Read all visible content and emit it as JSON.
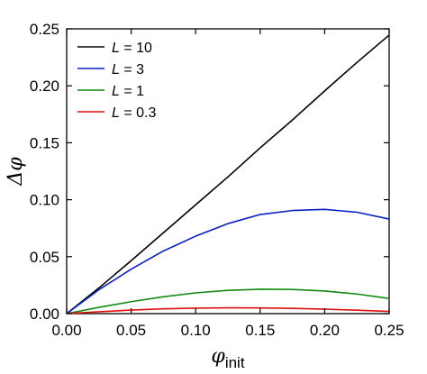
{
  "chart_data": {
    "type": "line",
    "xlabel": {
      "symbol": "φ",
      "subscript": "init"
    },
    "ylabel": "Δφ",
    "xlim": [
      0,
      0.25
    ],
    "ylim": [
      0,
      0.25
    ],
    "x_ticks": [
      "0.00",
      "0.05",
      "0.10",
      "0.15",
      "0.20",
      "0.25"
    ],
    "y_ticks": [
      "0.00",
      "0.05",
      "0.10",
      "0.15",
      "0.20",
      "0.25"
    ],
    "x_tick_values": [
      0,
      0.05,
      0.1,
      0.15,
      0.2,
      0.25
    ],
    "y_tick_values": [
      0,
      0.05,
      0.1,
      0.15,
      0.2,
      0.25
    ],
    "grid": false,
    "legend_position": "top-left",
    "series": [
      {
        "name": "L = 10",
        "legend_var": "L",
        "legend_value": "= 10",
        "color": "#000000",
        "x": [
          0,
          0.025,
          0.05,
          0.075,
          0.1,
          0.125,
          0.15,
          0.175,
          0.2,
          0.225,
          0.25
        ],
        "y": [
          0,
          0.0225,
          0.0465,
          0.071,
          0.0955,
          0.12,
          0.1455,
          0.17,
          0.1955,
          0.2205,
          0.2445
        ]
      },
      {
        "name": "L = 3",
        "legend_var": "L",
        "legend_value": "= 3",
        "color": "#0a1ec8",
        "x": [
          0,
          0.025,
          0.05,
          0.075,
          0.1,
          0.125,
          0.15,
          0.175,
          0.2,
          0.225,
          0.25
        ],
        "y": [
          0,
          0.021,
          0.039,
          0.055,
          0.068,
          0.079,
          0.087,
          0.0905,
          0.0915,
          0.089,
          0.083
        ]
      },
      {
        "name": "L = 1",
        "legend_var": "L",
        "legend_value": "= 1",
        "color": "#0f8c0f",
        "x": [
          0,
          0.025,
          0.05,
          0.075,
          0.1,
          0.125,
          0.15,
          0.175,
          0.2,
          0.225,
          0.25
        ],
        "y": [
          0,
          0.0055,
          0.0105,
          0.0148,
          0.0182,
          0.0204,
          0.0214,
          0.0212,
          0.0198,
          0.0172,
          0.0133
        ]
      },
      {
        "name": "L = 0.3",
        "legend_var": "L",
        "legend_value": "= 0.3",
        "color": "#e01010",
        "x": [
          0,
          0.025,
          0.05,
          0.075,
          0.1,
          0.125,
          0.15,
          0.175,
          0.2,
          0.225,
          0.25
        ],
        "y": [
          0,
          0.0016,
          0.0031,
          0.0042,
          0.0048,
          0.0051,
          0.005,
          0.0046,
          0.0039,
          0.003,
          0.0019
        ]
      }
    ]
  }
}
